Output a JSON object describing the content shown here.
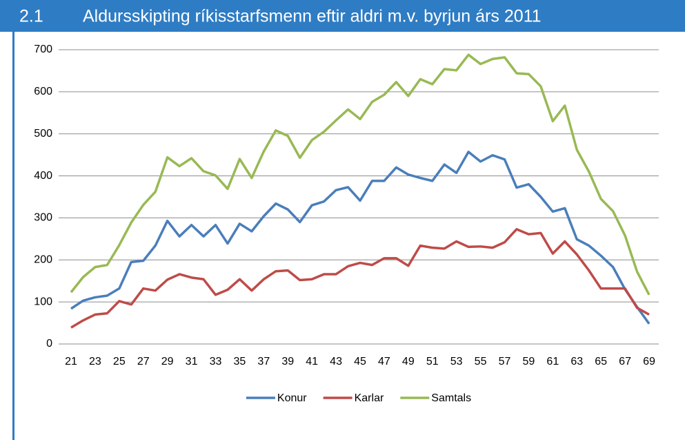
{
  "chart_data": {
    "type": "line",
    "number": "2.1",
    "title": "Aldursskipting ríkisstarfsmenn eftir aldri m.v. byrjun árs 2011",
    "categories": [
      "21",
      null,
      "23",
      null,
      "25",
      null,
      "27",
      null,
      "29",
      null,
      "31",
      null,
      "33",
      null,
      "35",
      null,
      "37",
      null,
      "39",
      null,
      "41",
      null,
      "43",
      null,
      "45",
      null,
      "47",
      null,
      "49",
      null,
      "51",
      null,
      "53",
      null,
      "55",
      null,
      "57",
      null,
      "59",
      null,
      "61",
      null,
      "63",
      null,
      "65",
      null,
      "67",
      null,
      "69"
    ],
    "ylim": [
      0,
      700
    ],
    "yticks": [
      0,
      100,
      200,
      300,
      400,
      500,
      600,
      700
    ],
    "grid": true,
    "legend": "bottom",
    "series": [
      {
        "name": "Konur",
        "color": "#4a7ebb",
        "values": [
          84,
          103,
          111,
          115,
          132,
          195,
          198,
          234,
          293,
          256,
          283,
          256,
          283,
          239,
          286,
          268,
          304,
          334,
          320,
          290,
          330,
          339,
          366,
          373,
          341,
          388,
          388,
          420,
          403,
          395,
          388,
          427,
          407,
          457,
          434,
          449,
          439,
          372,
          380,
          350,
          315,
          323,
          249,
          234,
          210,
          183,
          130,
          88,
          48
        ]
      },
      {
        "name": "Karlar",
        "color": "#be4b48",
        "values": [
          39,
          56,
          70,
          73,
          102,
          94,
          132,
          127,
          153,
          166,
          158,
          154,
          117,
          129,
          154,
          127,
          154,
          173,
          175,
          152,
          154,
          166,
          166,
          185,
          193,
          188,
          204,
          204,
          186,
          234,
          229,
          227,
          244,
          231,
          232,
          229,
          242,
          273,
          261,
          264,
          215,
          244,
          213,
          175,
          132,
          132,
          132,
          86,
          70
        ]
      },
      {
        "name": "Samtals",
        "color": "#98b954",
        "values": [
          123,
          159,
          183,
          188,
          235,
          289,
          331,
          362,
          444,
          423,
          442,
          411,
          401,
          369,
          440,
          395,
          458,
          508,
          495,
          443,
          485,
          505,
          532,
          558,
          535,
          576,
          593,
          623,
          590,
          630,
          618,
          654,
          651,
          688,
          666,
          678,
          682,
          644,
          642,
          613,
          530,
          567,
          462,
          410,
          345,
          316,
          258,
          172,
          117
        ]
      }
    ]
  }
}
